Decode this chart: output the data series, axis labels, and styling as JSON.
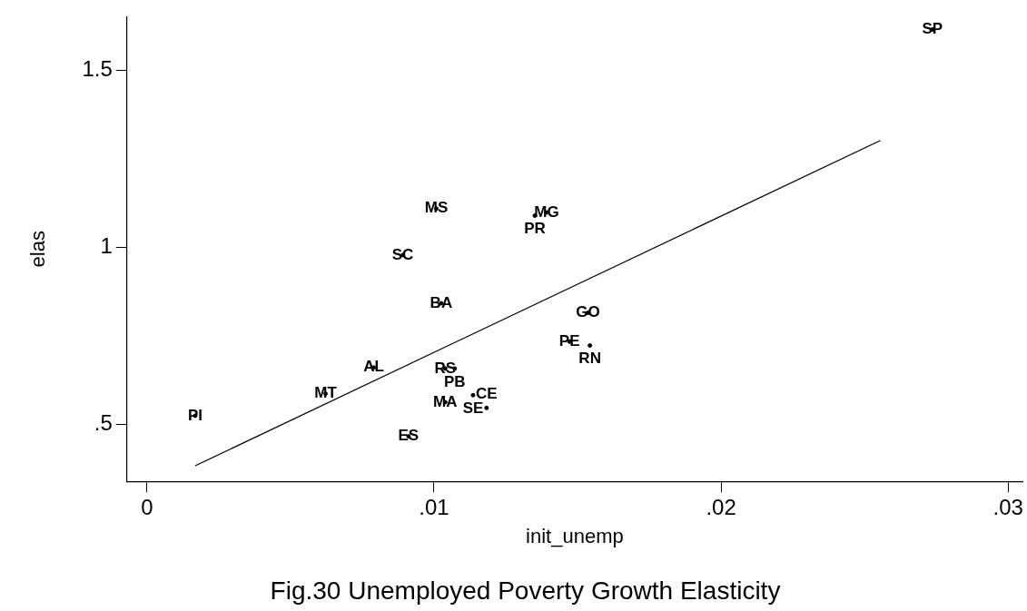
{
  "chart_data": {
    "type": "scatter",
    "title": "Fig.30 Unemployed Poverty Growth Elasticity",
    "xlabel": "init_unemp",
    "ylabel": "elas",
    "xlim": [
      -0.0007,
      0.0305
    ],
    "ylim": [
      0.34,
      1.65
    ],
    "xticks": [
      0,
      {
        "value": 0.01,
        "label": ".01"
      },
      {
        "value": 0.02,
        "label": ".02"
      },
      {
        "value": 0.03,
        "label": ".03"
      }
    ],
    "yticks": [
      {
        "value": 0.5,
        "label": ".5"
      },
      1,
      1.5
    ],
    "grid": false,
    "legend": false,
    "series": [
      {
        "color": "#000000",
        "marker": "circle",
        "x": [
          0.02736,
          0.01008,
          0.01392,
          0.01351,
          0.00891,
          0.01025,
          0.01536,
          0.01472,
          0.01543,
          0.0079,
          0.01039,
          0.01072,
          0.00622,
          0.01039,
          0.01136,
          0.01183,
          0.00911,
          0.00168
        ],
        "values": [
          1.614,
          1.109,
          1.098,
          1.089,
          0.978,
          0.842,
          0.815,
          0.734,
          0.723,
          0.661,
          0.658,
          0.658,
          0.587,
          0.563,
          0.583,
          0.547,
          0.467,
          0.525
        ],
        "value_labels": [
          "SP",
          "MS",
          "MG",
          "PR",
          "SC",
          "BA",
          "GO",
          "PE",
          "RN",
          "AL",
          "RS",
          "PB",
          "MT",
          "MA",
          "SE",
          "CE",
          "ES",
          "PI"
        ]
      },
      {
        "type": "line",
        "color": "#000000",
        "marker": "none",
        "line_style": "solid",
        "x": [
          0.00168,
          0.02555
        ],
        "values": [
          0.384,
          1.301
        ]
      }
    ]
  }
}
